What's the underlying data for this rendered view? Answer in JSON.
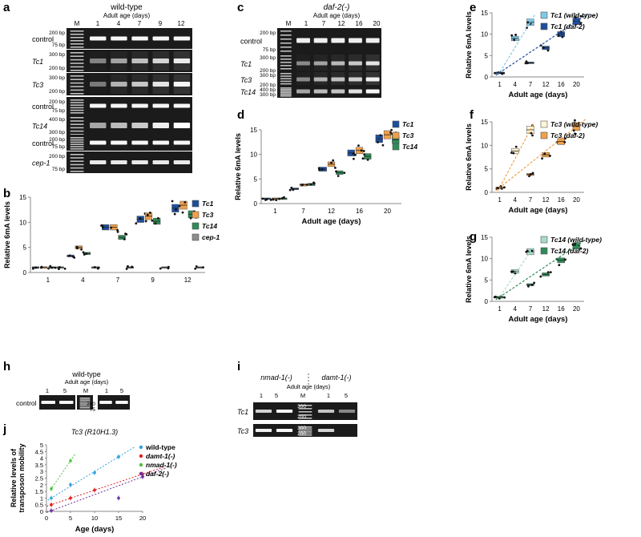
{
  "figure": {
    "panel_letters": [
      "a",
      "b",
      "c",
      "d",
      "e",
      "f",
      "g",
      "h",
      "i",
      "j"
    ]
  },
  "gels": {
    "a": {
      "title": "wild-type",
      "subtitle": "Adult age (days)",
      "lanes": [
        "M",
        "1",
        "4",
        "7",
        "9",
        "12"
      ],
      "rows": [
        {
          "label": "control",
          "markers": [
            "200 bp",
            "75 bp"
          ]
        },
        {
          "label": "Tc1",
          "markers": [
            "300 bp",
            "200 bp"
          ]
        },
        {
          "label": "Tc3",
          "markers": [
            "300 bp",
            "200 bp"
          ]
        },
        {
          "label": "control",
          "markers": [
            "200 bp",
            "75 bp"
          ]
        },
        {
          "label": "Tc14",
          "markers": [
            "400 bp",
            "300 bp"
          ]
        },
        {
          "label": "control",
          "markers": [
            "200 bp",
            "75 bp"
          ]
        },
        {
          "label": "cep-1",
          "markers": [
            "200 bp",
            "75 bp"
          ]
        }
      ]
    },
    "c": {
      "title": "daf-2(-)",
      "subtitle": "Adult age (days)",
      "lanes": [
        "M",
        "1",
        "7",
        "12",
        "16",
        "20"
      ],
      "rows": [
        {
          "label": "control",
          "markers": [
            "200 bp",
            "75 bp"
          ]
        },
        {
          "label": "Tc1",
          "markers": [
            "300 bp",
            "200 bp"
          ]
        },
        {
          "label": "Tc3",
          "markers": [
            "300 bp",
            "200 bp"
          ]
        },
        {
          "label": "Tc14",
          "markers": [
            "400 bp",
            "300 bp"
          ]
        }
      ]
    },
    "h": {
      "title": "wild-type",
      "subtitle": "Adult age (days)",
      "lanes": [
        "1",
        "5",
        "M",
        "1",
        "5"
      ],
      "row_label": "control",
      "markers": [
        "200",
        "75"
      ]
    },
    "i": {
      "title_left": "nmad-1(-)",
      "title_right": "damt-1(-)",
      "subtitle": "Adult age (days)",
      "lanes": [
        "1",
        "5",
        "M",
        "1",
        "5"
      ],
      "rows": [
        {
          "label": "Tc1",
          "markers": [
            "300",
            "200"
          ]
        },
        {
          "label": "Tc3",
          "markers": [
            "300",
            "200"
          ]
        }
      ]
    }
  },
  "chart_data": [
    {
      "id": "b",
      "type": "box",
      "ylabel": "Relative 6mA levels",
      "categories": [
        "1",
        "4",
        "7",
        "9",
        "12"
      ],
      "ylim": [
        0,
        15
      ],
      "yticks": [
        0,
        5,
        10,
        15
      ],
      "series": [
        {
          "name": "Tc1",
          "color": "#1f4e9c",
          "values": [
            1.0,
            3.3,
            9.0,
            10.6,
            12.8
          ]
        },
        {
          "name": "Tc3",
          "color": "#f0a04b",
          "values": [
            1.0,
            5.0,
            9.0,
            11.2,
            13.4
          ]
        },
        {
          "name": "Tc14",
          "color": "#2e8b57",
          "values": [
            1.0,
            3.8,
            7.0,
            10.2,
            11.6
          ]
        },
        {
          "name": "cep-1",
          "color": "#8c8c8c",
          "values": [
            1.0,
            1.0,
            1.0,
            1.0,
            1.0
          ]
        }
      ]
    },
    {
      "id": "d",
      "type": "box",
      "ylabel": "Relative 6mA levels",
      "xlabel": "Adult age (days)",
      "categories": [
        "1",
        "7",
        "12",
        "16",
        "20"
      ],
      "ylim": [
        0,
        15
      ],
      "yticks": [
        0,
        5,
        10,
        15
      ],
      "series": [
        {
          "name": "Tc1",
          "color": "#1f4e9c",
          "values": [
            1.0,
            3.0,
            7.0,
            10.3,
            13.2
          ]
        },
        {
          "name": "Tc3",
          "color": "#f0a04b",
          "values": [
            1.0,
            3.8,
            8.0,
            10.8,
            14.0
          ]
        },
        {
          "name": "Tc14",
          "color": "#2e8b57",
          "values": [
            1.0,
            3.9,
            6.3,
            9.6,
            13.0
          ]
        }
      ]
    },
    {
      "id": "e",
      "type": "box",
      "ylabel": "Relative 6mA levels",
      "xlabel": "Adult age (days)",
      "categories": [
        "1",
        "4",
        "7",
        "12",
        "16",
        "20"
      ],
      "ylim": [
        0,
        15
      ],
      "yticks": [
        0,
        5,
        10,
        15
      ],
      "series": [
        {
          "name": "Tc1 (wild-type)",
          "color": "#7ec8e8",
          "values": [
            1.0,
            9.0,
            12.8,
            null,
            null,
            null
          ]
        },
        {
          "name": "Tc1 (daf-2)",
          "color": "#1f4e9c",
          "values": [
            1.0,
            null,
            3.3,
            6.8,
            10.0,
            13.0
          ]
        }
      ]
    },
    {
      "id": "f",
      "type": "box",
      "ylabel": "Relative 6mA levels",
      "xlabel": "Adult age (days)",
      "categories": [
        "1",
        "4",
        "7",
        "12",
        "16",
        "20"
      ],
      "ylim": [
        0,
        15
      ],
      "yticks": [
        0,
        5,
        10,
        15
      ],
      "series": [
        {
          "name": "Tc3 (wild-type)",
          "color": "#fff6d8",
          "values": [
            1.0,
            8.8,
            13.3,
            null,
            null,
            null
          ]
        },
        {
          "name": "Tc3 (daf-2)",
          "color": "#f0a04b",
          "values": [
            1.0,
            null,
            3.8,
            8.0,
            10.8,
            14.0
          ]
        }
      ]
    },
    {
      "id": "g",
      "type": "box",
      "ylabel": "Relative 6mA levels",
      "xlabel": "Adult age (days)",
      "categories": [
        "1",
        "4",
        "7",
        "12",
        "16",
        "20"
      ],
      "ylim": [
        0,
        15
      ],
      "yticks": [
        0,
        5,
        10,
        15
      ],
      "series": [
        {
          "name": "Tc14 (wild-type)",
          "color": "#a8dcc8",
          "values": [
            1.0,
            7.0,
            11.6,
            null,
            null,
            null
          ]
        },
        {
          "name": "Tc14 (daf-2)",
          "color": "#2e8b57",
          "values": [
            1.0,
            null,
            3.9,
            6.3,
            9.6,
            13.0
          ]
        }
      ]
    },
    {
      "id": "j",
      "type": "scatter",
      "title": "Tc3 (R10H1.3)",
      "xlabel": "Age (days)",
      "ylabel": "Relative levels of transposon mobility",
      "xlim": [
        0,
        20
      ],
      "ylim": [
        0,
        5
      ],
      "xticks": [
        0,
        5,
        10,
        15,
        20
      ],
      "yticks": [
        0,
        0.5,
        1,
        1.5,
        2,
        2.5,
        3,
        3.5,
        4,
        4.5,
        5
      ],
      "series": [
        {
          "name": "wild-type",
          "color": "#2fa0e0",
          "x": [
            1,
            5,
            10,
            15
          ],
          "y": [
            1.0,
            2.0,
            2.9,
            4.1
          ]
        },
        {
          "name": "damt-1(-)",
          "color": "#e02020",
          "x": [
            1,
            5,
            10,
            20
          ],
          "y": [
            0.5,
            1.0,
            1.6,
            2.8
          ]
        },
        {
          "name": "nmad-1(-)",
          "color": "#50c040",
          "x": [
            1,
            5
          ],
          "y": [
            1.7,
            3.8
          ]
        },
        {
          "name": "daf-2(-)",
          "color": "#6a2fa0",
          "x": [
            1,
            15,
            20
          ],
          "y": [
            0.05,
            1.0,
            2.6
          ]
        }
      ]
    }
  ]
}
